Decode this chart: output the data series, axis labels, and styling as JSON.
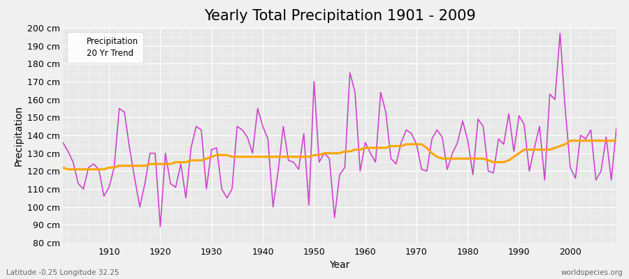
{
  "title": "Yearly Total Precipitation 1901 - 2009",
  "xlabel": "Year",
  "ylabel": "Precipitation",
  "subtitle_left": "Latitude -0.25 Longitude 32.25",
  "subtitle_right": "worldspecies.org",
  "years": [
    1901,
    1902,
    1903,
    1904,
    1905,
    1906,
    1907,
    1908,
    1909,
    1910,
    1911,
    1912,
    1913,
    1914,
    1915,
    1916,
    1917,
    1918,
    1919,
    1920,
    1921,
    1922,
    1923,
    1924,
    1925,
    1926,
    1927,
    1928,
    1929,
    1930,
    1931,
    1932,
    1933,
    1934,
    1935,
    1936,
    1937,
    1938,
    1939,
    1940,
    1941,
    1942,
    1943,
    1944,
    1945,
    1946,
    1947,
    1948,
    1949,
    1950,
    1951,
    1952,
    1953,
    1954,
    1955,
    1956,
    1957,
    1958,
    1959,
    1960,
    1961,
    1962,
    1963,
    1964,
    1965,
    1966,
    1967,
    1968,
    1969,
    1970,
    1971,
    1972,
    1973,
    1974,
    1975,
    1976,
    1977,
    1978,
    1979,
    1980,
    1981,
    1982,
    1983,
    1984,
    1985,
    1986,
    1987,
    1988,
    1989,
    1990,
    1991,
    1992,
    1993,
    1994,
    1995,
    1996,
    1997,
    1998,
    1999,
    2000,
    2001,
    2002,
    2003,
    2004,
    2005,
    2006,
    2007,
    2008,
    2009
  ],
  "precipitation": [
    136,
    131,
    125,
    113,
    110,
    122,
    124,
    121,
    106,
    111,
    122,
    155,
    153,
    133,
    116,
    100,
    113,
    130,
    130,
    89,
    130,
    113,
    111,
    124,
    105,
    133,
    145,
    143,
    110,
    132,
    133,
    110,
    105,
    110,
    145,
    143,
    139,
    130,
    155,
    145,
    138,
    100,
    120,
    145,
    126,
    125,
    121,
    141,
    101,
    170,
    125,
    130,
    127,
    94,
    118,
    122,
    175,
    164,
    120,
    136,
    130,
    125,
    164,
    153,
    127,
    124,
    136,
    143,
    141,
    135,
    121,
    120,
    138,
    143,
    139,
    121,
    130,
    136,
    148,
    137,
    118,
    149,
    145,
    120,
    119,
    138,
    135,
    152,
    131,
    151,
    146,
    120,
    133,
    145,
    115,
    163,
    160,
    197,
    155,
    122,
    116,
    140,
    138,
    143,
    115,
    120,
    139,
    115,
    144
  ],
  "trend": [
    122,
    121,
    121,
    121,
    121,
    121,
    121,
    121,
    121,
    122,
    122,
    123,
    123,
    123,
    123,
    123,
    123,
    124,
    124,
    124,
    124,
    124,
    125,
    125,
    125,
    126,
    126,
    126,
    127,
    128,
    129,
    129,
    129,
    128,
    128,
    128,
    128,
    128,
    128,
    128,
    128,
    128,
    128,
    128,
    128,
    128,
    128,
    128,
    128,
    129,
    129,
    130,
    130,
    130,
    130,
    131,
    131,
    132,
    132,
    133,
    133,
    133,
    133,
    133,
    134,
    134,
    134,
    135,
    135,
    135,
    135,
    133,
    130,
    128,
    127,
    127,
    127,
    127,
    127,
    127,
    127,
    127,
    127,
    126,
    125,
    125,
    125,
    126,
    128,
    130,
    132,
    132,
    132,
    132,
    132,
    132,
    133,
    134,
    135,
    137,
    137,
    137,
    137,
    137,
    137,
    137,
    137,
    137,
    137
  ],
  "line_color": "#CC44CC",
  "trend_color": "#FFA500",
  "bg_color": "#F0F0F0",
  "plot_bg_color": "#E8E8E8",
  "ylim": [
    80,
    200
  ],
  "yticks": [
    80,
    90,
    100,
    110,
    120,
    130,
    140,
    150,
    160,
    170,
    180,
    190,
    200
  ],
  "xticks": [
    1910,
    1920,
    1930,
    1940,
    1950,
    1960,
    1970,
    1980,
    1990,
    2000
  ],
  "title_fontsize": 15,
  "axis_fontsize": 10,
  "tick_fontsize": 9
}
